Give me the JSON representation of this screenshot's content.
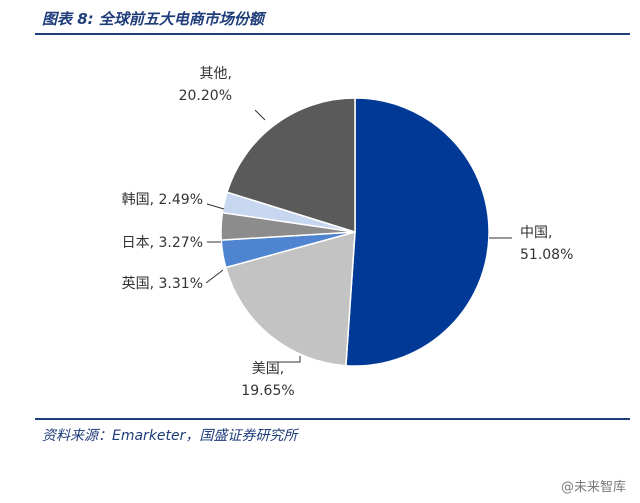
{
  "figure_title": "图表 8:  全球前五大电商市场份额",
  "source": "资料来源：Emarketer，国盛证券研究所",
  "watermark": "@未来智库",
  "chart_data": {
    "type": "pie",
    "title": "",
    "slices": [
      {
        "name": "中国",
        "value": 51.08,
        "value_label": "51.08%",
        "color": "#003a96"
      },
      {
        "name": "美国",
        "value": 19.65,
        "value_label": "19.65%",
        "color": "#c3c3c3"
      },
      {
        "name": "英国",
        "value": 3.31,
        "value_label": "3.31%",
        "color": "#4f84d0"
      },
      {
        "name": "日本",
        "value": 3.27,
        "value_label": "3.27%",
        "color": "#8c8c8c"
      },
      {
        "name": "韩国",
        "value": 2.49,
        "value_label": "2.49%",
        "color": "#c7d7ef"
      },
      {
        "name": "其他",
        "value": 20.2,
        "value_label": "20.20%",
        "color": "#5a5a5a"
      }
    ],
    "start_angle": "12 o'clock",
    "direction": "clockwise",
    "legend": "none"
  }
}
